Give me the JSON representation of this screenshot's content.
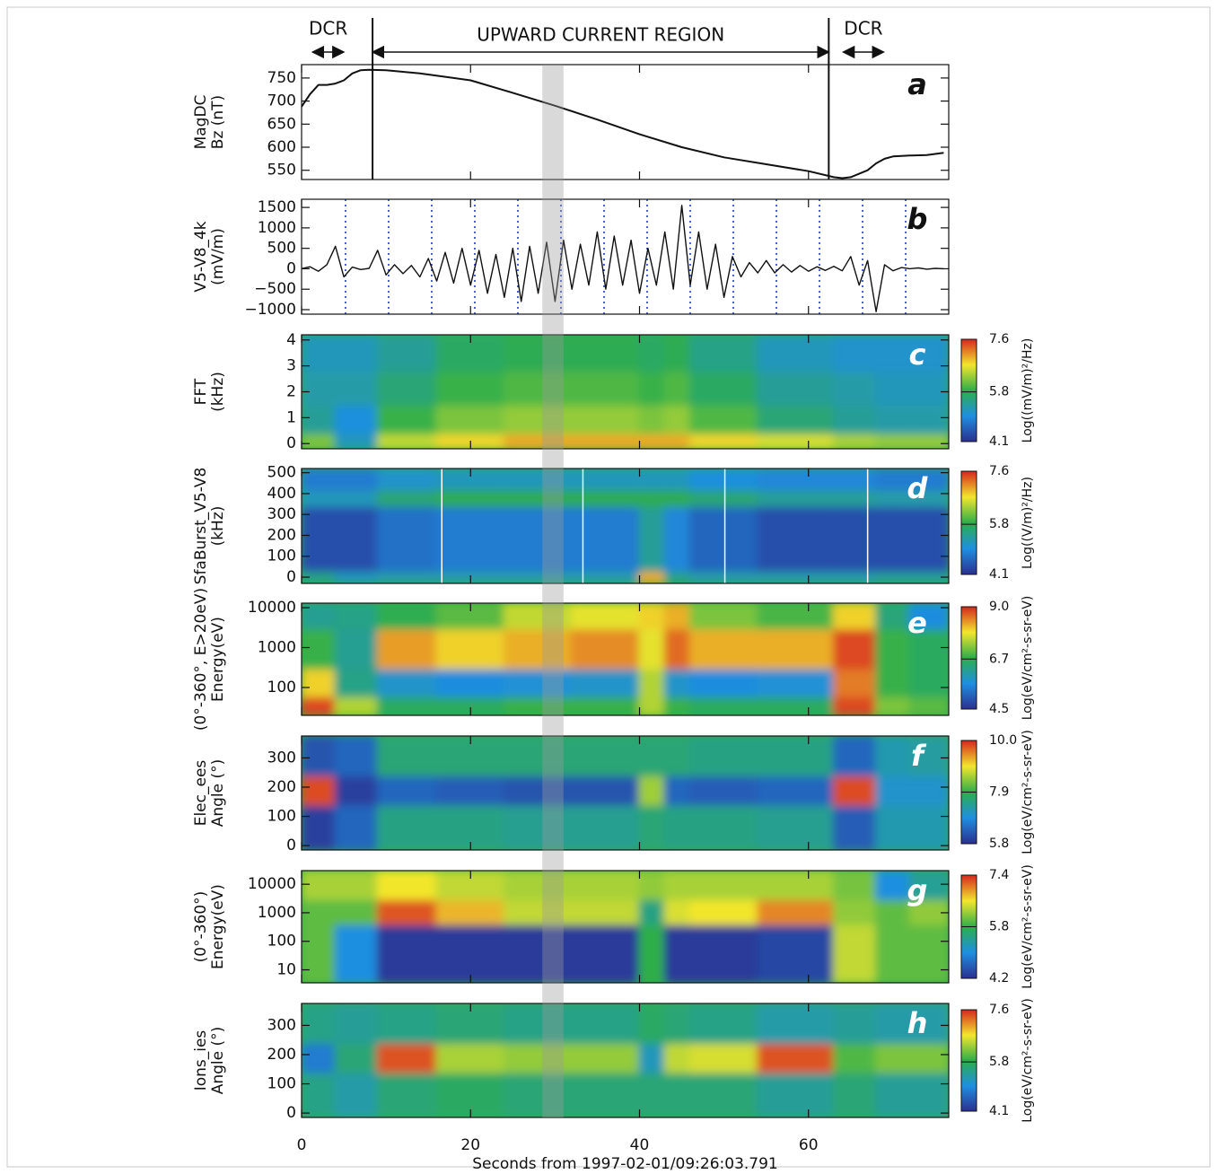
{
  "chart_data": [
    {
      "type": "line",
      "label": "a",
      "ylabel": [
        "MagDC",
        "Bz (nT)"
      ],
      "color": "#111111",
      "x": [
        0,
        1,
        2,
        3,
        4,
        5,
        6,
        7,
        8,
        10,
        14,
        18,
        20,
        25,
        30,
        35,
        40,
        45,
        50,
        55,
        60,
        63,
        64,
        65,
        67,
        68,
        69,
        70,
        72,
        74,
        76
      ],
      "values": [
        688,
        715,
        735,
        735,
        738,
        745,
        760,
        767,
        768,
        767,
        760,
        750,
        745,
        718,
        690,
        660,
        628,
        600,
        578,
        563,
        548,
        535,
        533,
        535,
        550,
        565,
        575,
        580,
        582,
        583,
        588
      ],
      "ylim": [
        530,
        779
      ],
      "yticks": [
        550,
        600,
        650,
        700,
        750
      ],
      "annotations": [
        {
          "text": "DCR",
          "x0": 1.3,
          "x1": 5.0
        },
        {
          "text": "UPWARD CURRENT REGION",
          "x0": 8.4,
          "x1": 62.4
        },
        {
          "text": "DCR",
          "x0": 64.1,
          "x1": 68.9
        }
      ],
      "vlines": [
        8.4,
        62.4
      ]
    },
    {
      "type": "line",
      "label": "b",
      "ylabel": [
        "V5-V8_4k",
        "(mV/m)"
      ],
      "color": "#111111",
      "x": [
        0,
        1,
        2,
        3,
        4,
        5,
        6,
        7,
        8,
        9,
        10,
        11,
        12,
        13,
        14,
        15,
        16,
        17,
        18,
        19,
        20,
        21,
        22,
        23,
        24,
        25,
        26,
        27,
        28,
        29,
        30,
        31,
        32,
        33,
        34,
        35,
        36,
        37,
        38,
        39,
        40,
        41,
        42,
        43,
        44,
        45,
        46,
        47,
        48,
        49,
        50,
        51,
        52,
        53,
        54,
        55,
        56,
        57,
        58,
        59,
        60,
        61,
        62,
        63,
        64,
        65,
        66,
        67,
        68,
        69,
        70,
        71,
        72,
        73,
        74,
        75,
        76
      ],
      "values": [
        0,
        50,
        -60,
        100,
        550,
        -200,
        40,
        -20,
        10,
        450,
        -150,
        100,
        -120,
        80,
        -200,
        250,
        -300,
        400,
        -350,
        500,
        -400,
        450,
        -600,
        350,
        -700,
        500,
        -800,
        550,
        -600,
        650,
        -800,
        700,
        -500,
        600,
        -400,
        900,
        -500,
        800,
        -400,
        700,
        -600,
        500,
        -400,
        900,
        -500,
        1550,
        -400,
        900,
        -500,
        600,
        -700,
        300,
        -200,
        150,
        -100,
        200,
        -100,
        100,
        -80,
        80,
        -60,
        50,
        -40,
        60,
        -50,
        300,
        -400,
        200,
        -1050,
        100,
        -50,
        30,
        0,
        20,
        -10,
        10,
        0
      ],
      "ylim": [
        -1110,
        1700
      ],
      "yticks": [
        {
          "value": -1000,
          "label": "−1000"
        },
        {
          "value": -500,
          "label": "−500"
        },
        0,
        500,
        1000,
        1500
      ],
      "dotted_x": [
        5.2,
        10.3,
        15.4,
        20.5,
        25.6,
        30.7,
        35.8,
        40.9,
        46,
        51.1,
        56.2,
        61.3,
        66.4,
        71.5
      ],
      "dotted_color": "#1f3fbf"
    },
    {
      "type": "heatmap",
      "label": "c",
      "ylabel": [
        "FFT",
        "(kHz)"
      ],
      "ylim": [
        -0.2,
        4.2
      ],
      "yticks": [
        0,
        1,
        2,
        3,
        4
      ],
      "x_edges": [
        0,
        4,
        9,
        16,
        24,
        32,
        40,
        43,
        46,
        54,
        63,
        68,
        72,
        76.6
      ],
      "y_edges": [
        -0.2,
        0.4,
        1.5,
        2.8,
        4.2
      ],
      "z": [
        [
          6.2,
          5.2,
          6.5,
          6.8,
          7.0,
          7.0,
          7.0,
          7.0,
          6.8,
          6.6,
          6.4,
          6.3,
          6.3
        ],
        [
          5.4,
          5.0,
          5.9,
          6.2,
          6.3,
          6.3,
          6.2,
          6.3,
          6.0,
          5.6,
          5.4,
          5.3,
          5.3
        ],
        [
          5.3,
          5.3,
          5.6,
          5.9,
          6.0,
          6.0,
          5.9,
          6.0,
          5.7,
          5.4,
          5.3,
          5.2,
          5.2
        ],
        [
          5.2,
          5.2,
          5.4,
          5.7,
          5.8,
          5.8,
          5.7,
          5.8,
          5.5,
          5.2,
          5.1,
          5.1,
          5.1
        ]
      ],
      "clim": [
        4.1,
        7.6
      ],
      "cticks": [
        4.1,
        5.8,
        7.6
      ],
      "colorbar_label": "Log((mV/m)²/Hz)",
      "colormap": [
        "#2b2f8f",
        "#1f8fe0",
        "#2eae4a",
        "#f2e62c",
        "#d7261f"
      ]
    },
    {
      "type": "heatmap",
      "label": "d",
      "ylabel": [
        "SfaBurst_V5-V8",
        "(kHz)"
      ],
      "ylim": [
        -30,
        520
      ],
      "yticks": [
        0,
        100,
        200,
        300,
        400,
        500
      ],
      "x_edges": [
        0,
        4,
        9,
        16,
        24,
        32,
        40,
        43,
        46,
        54,
        63,
        68,
        72,
        76.6
      ],
      "y_edges": [
        -30,
        30,
        340,
        420,
        520
      ],
      "z": [
        [
          5.5,
          5.2,
          5.3,
          5.3,
          5.3,
          5.3,
          7.0,
          5.5,
          5.3,
          5.3,
          5.3,
          5.4,
          5.4
        ],
        [
          4.4,
          4.4,
          4.7,
          4.8,
          4.8,
          4.8,
          5.4,
          4.9,
          4.6,
          4.4,
          4.4,
          4.4,
          4.4
        ],
        [
          5.2,
          5.2,
          5.6,
          5.8,
          5.8,
          5.8,
          5.8,
          5.8,
          5.6,
          5.4,
          5.4,
          5.3,
          5.3
        ],
        [
          4.8,
          4.8,
          5.1,
          5.2,
          5.2,
          5.2,
          5.2,
          5.2,
          5.0,
          4.9,
          4.9,
          4.8,
          4.8
        ]
      ],
      "white_lines_x": [
        16.6,
        33.3,
        50.1,
        67
      ],
      "clim": [
        4.1,
        7.6
      ],
      "cticks": [
        4.1,
        5.8,
        7.6
      ],
      "colorbar_label": "Log((V/m)²/Hz)",
      "colormap": [
        "#2b2f8f",
        "#1f8fe0",
        "#2eae4a",
        "#f2e62c",
        "#d7261f"
      ]
    },
    {
      "type": "heatmap",
      "label": "e",
      "ylabel": [
        "(0°-360°, E>20eV)",
        "Energy(eV)"
      ],
      "log_y": true,
      "ylim": [
        20,
        13000
      ],
      "yticks": [
        100,
        1000,
        10000
      ],
      "x_edges": [
        0,
        4,
        9,
        16,
        24,
        32,
        40,
        43,
        46,
        54,
        63,
        68,
        72,
        76.6
      ],
      "y_edges": [
        20,
        60,
        300,
        3000,
        13000
      ],
      "z": [
        [
          8.8,
          7.5,
          6.6,
          6.6,
          6.8,
          6.8,
          7.5,
          6.8,
          6.6,
          6.6,
          8.8,
          7.2,
          7.0
        ],
        [
          8.0,
          6.3,
          5.8,
          5.6,
          5.7,
          5.8,
          7.5,
          5.8,
          5.6,
          5.7,
          8.5,
          6.8,
          6.6
        ],
        [
          6.8,
          6.2,
          8.3,
          8.0,
          8.2,
          8.4,
          7.8,
          8.6,
          8.2,
          8.2,
          8.8,
          6.8,
          6.6
        ],
        [
          6.2,
          6.3,
          6.7,
          7.0,
          7.6,
          7.8,
          8.0,
          8.2,
          7.2,
          6.9,
          8.0,
          6.4,
          5.6
        ]
      ],
      "clim": [
        4.5,
        9
      ],
      "cticks": [
        4.5,
        6.7,
        {
          "value": 9,
          "label": "9.0"
        }
      ],
      "colorbar_label": "Log(eV/cm²-s-sr-eV)",
      "colormap": [
        "#2b2f8f",
        "#1f8fe0",
        "#2eae4a",
        "#f2e62c",
        "#d7261f"
      ]
    },
    {
      "type": "heatmap",
      "label": "f",
      "ylabel": [
        "Elec_ees",
        "Angle (°)"
      ],
      "ylim": [
        -15,
        375
      ],
      "yticks": [
        0,
        100,
        200,
        300
      ],
      "x_edges": [
        0,
        4,
        9,
        16,
        24,
        32,
        40,
        43,
        46,
        54,
        63,
        68,
        72,
        76.6
      ],
      "y_edges": [
        -15,
        140,
        240,
        375
      ],
      "z": [
        [
          6.0,
          6.4,
          7.5,
          7.5,
          7.4,
          7.4,
          7.6,
          7.5,
          7.5,
          7.4,
          6.3,
          7.2,
          7.2
        ],
        [
          9.8,
          6.0,
          6.4,
          6.3,
          6.2,
          6.2,
          8.5,
          6.4,
          6.3,
          6.4,
          9.8,
          7.0,
          7.0
        ],
        [
          6.2,
          6.4,
          7.6,
          7.6,
          7.6,
          7.6,
          7.6,
          7.6,
          7.5,
          7.5,
          6.4,
          7.2,
          7.3
        ]
      ],
      "clim": [
        5.8,
        10
      ],
      "cticks": [
        5.8,
        7.9,
        {
          "value": 10,
          "label": "10.0"
        }
      ],
      "colorbar_label": "Log(eV/cm²-s-sr-eV)",
      "colormap": [
        "#2b2f8f",
        "#1f8fe0",
        "#2eae4a",
        "#f2e62c",
        "#d7261f"
      ]
    },
    {
      "type": "heatmap",
      "label": "g",
      "ylabel": [
        "(0°-360°)",
        "Energy(eV)"
      ],
      "log_y": true,
      "ylim": [
        3.5,
        30000
      ],
      "yticks": [
        10,
        100,
        1000,
        10000
      ],
      "x_edges": [
        0,
        4,
        9,
        16,
        24,
        32,
        40,
        43,
        46,
        54,
        63,
        68,
        72,
        76.6
      ],
      "y_edges": [
        3.5,
        400,
        3000,
        30000
      ],
      "z": [
        [
          6.0,
          5.0,
          4.3,
          4.3,
          4.3,
          4.3,
          5.8,
          4.3,
          4.3,
          4.4,
          6.4,
          6.0,
          6.0
        ],
        [
          6.0,
          6.0,
          7.2,
          6.8,
          6.4,
          6.4,
          5.5,
          6.5,
          6.6,
          7.0,
          6.2,
          6.0,
          6.2
        ],
        [
          6.3,
          6.3,
          6.6,
          6.4,
          6.3,
          6.3,
          6.2,
          6.3,
          6.3,
          6.3,
          6.1,
          5.0,
          5.4
        ]
      ],
      "clim": [
        4.2,
        7.4
      ],
      "cticks": [
        4.2,
        5.8,
        7.4
      ],
      "colorbar_label": "Log(eV/cm²-s-sr-eV)",
      "colormap": [
        "#2b2f8f",
        "#1f8fe0",
        "#2eae4a",
        "#f2e62c",
        "#d7261f"
      ]
    },
    {
      "type": "heatmap",
      "label": "h",
      "ylabel": [
        "Ions_ies",
        "Angle (°)"
      ],
      "ylim": [
        -15,
        375
      ],
      "yticks": [
        0,
        100,
        200,
        300
      ],
      "x_edges": [
        0,
        4,
        9,
        16,
        24,
        32,
        40,
        43,
        46,
        54,
        63,
        68,
        72,
        76.6
      ],
      "y_edges": [
        -15,
        140,
        240,
        375
      ],
      "z": [
        [
          5.5,
          5.3,
          5.6,
          5.7,
          5.6,
          5.6,
          5.6,
          5.6,
          5.6,
          5.4,
          5.6,
          5.4,
          5.4
        ],
        [
          4.8,
          5.6,
          7.4,
          6.4,
          6.3,
          6.3,
          5.2,
          6.5,
          6.6,
          7.4,
          6.0,
          6.2,
          6.2
        ],
        [
          5.5,
          5.4,
          5.5,
          5.6,
          5.5,
          5.5,
          5.7,
          5.6,
          5.5,
          5.3,
          5.4,
          5.3,
          5.3
        ]
      ],
      "clim": [
        4.1,
        7.6
      ],
      "cticks": [
        4.1,
        5.8,
        7.6
      ],
      "colorbar_label": "Log(eV/cm²-s-sr-eV)",
      "colormap": [
        "#2b2f8f",
        "#1f8fe0",
        "#2eae4a",
        "#f2e62c",
        "#d7261f"
      ],
      "xlim": [
        0,
        76.6
      ],
      "xticks": [
        0,
        20,
        40,
        60
      ],
      "xlabel": "Seconds from 1997-02-01/09:26:03.791",
      "highlight_x": [
        28.5,
        31
      ]
    }
  ]
}
